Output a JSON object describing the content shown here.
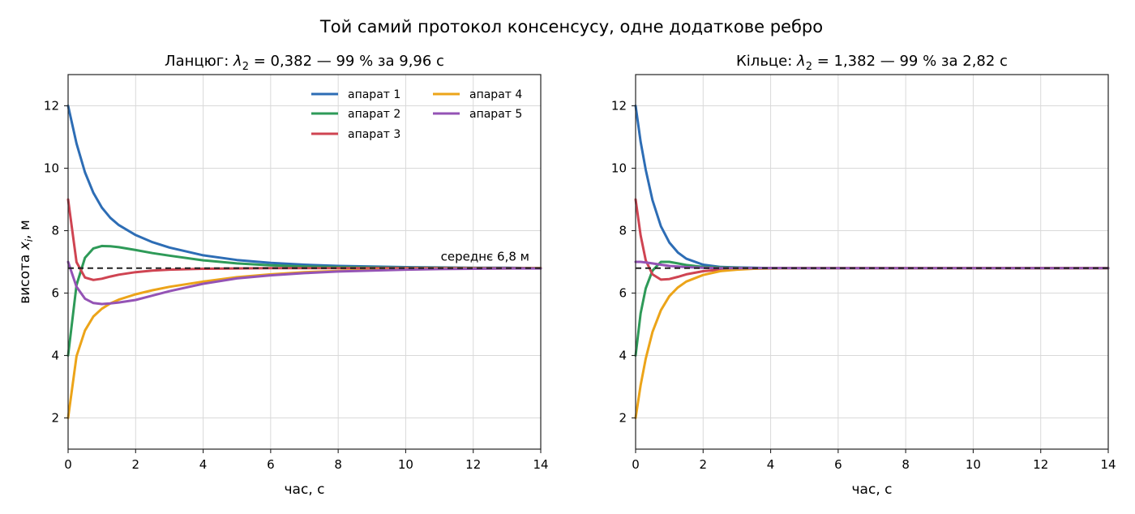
{
  "suptitle": "Той самий протокол консенсусу, одне додаткове ребро",
  "chart_data": [
    {
      "type": "line",
      "title_prefix": "Ланцюг: ",
      "title_symbol": "λ",
      "title_subscript": "2",
      "title_suffix": " = 0,382 — 99 % за 9,96 с",
      "xlabel": "час, с",
      "ylabel_prefix": "висота ",
      "ylabel_symbol": "x",
      "ylabel_subscript": "i",
      "ylabel_suffix": ", м",
      "xlim": [
        0,
        14
      ],
      "ylim": [
        1,
        13
      ],
      "xticks": [
        0,
        2,
        4,
        6,
        8,
        10,
        12,
        14
      ],
      "yticks": [
        2,
        4,
        6,
        8,
        10,
        12
      ],
      "grid": true,
      "legend_position": "top-right",
      "mean": 6.8,
      "mean_label": "середнє 6,8 м",
      "x": [
        0,
        0.25,
        0.5,
        0.75,
        1,
        1.25,
        1.5,
        2,
        2.5,
        3,
        4,
        5,
        6,
        7,
        8,
        9,
        10,
        11,
        12,
        13,
        14
      ],
      "series": [
        {
          "name": "апарат 1",
          "color": "#2d6db5",
          "values": [
            12.0,
            10.79,
            9.87,
            9.21,
            8.74,
            8.41,
            8.18,
            7.86,
            7.63,
            7.46,
            7.21,
            7.06,
            6.97,
            6.91,
            6.87,
            6.85,
            6.83,
            6.82,
            6.81,
            6.81,
            6.8
          ]
        },
        {
          "name": "апарат 2",
          "color": "#2e9a58",
          "values": [
            4.0,
            6.26,
            7.13,
            7.43,
            7.51,
            7.5,
            7.47,
            7.38,
            7.28,
            7.2,
            7.05,
            6.95,
            6.89,
            6.85,
            6.83,
            6.82,
            6.81,
            6.81,
            6.8,
            6.8,
            6.8
          ]
        },
        {
          "name": "апарат 3",
          "color": "#cf4452",
          "values": [
            9.0,
            6.99,
            6.5,
            6.42,
            6.46,
            6.53,
            6.59,
            6.67,
            6.72,
            6.75,
            6.78,
            6.79,
            6.8,
            6.8,
            6.8,
            6.8,
            6.8,
            6.8,
            6.8,
            6.8,
            6.8
          ]
        },
        {
          "name": "апарат 4",
          "color": "#eca419",
          "values": [
            2.0,
            3.98,
            4.8,
            5.25,
            5.5,
            5.67,
            5.79,
            5.96,
            6.09,
            6.2,
            6.37,
            6.51,
            6.6,
            6.67,
            6.71,
            6.74,
            6.76,
            6.78,
            6.79,
            6.79,
            6.8
          ]
        },
        {
          "name": "апарат 5",
          "color": "#9453b5",
          "values": [
            7.0,
            6.2,
            5.82,
            5.68,
            5.65,
            5.67,
            5.7,
            5.78,
            5.92,
            6.06,
            6.3,
            6.47,
            6.57,
            6.64,
            6.69,
            6.72,
            6.75,
            6.77,
            6.78,
            6.79,
            6.79
          ]
        }
      ]
    },
    {
      "type": "line",
      "title_prefix": "Кільце: ",
      "title_symbol": "λ",
      "title_subscript": "2",
      "title_suffix": " = 1,382 — 99 % за 2,82 с",
      "xlabel": "час, с",
      "xlim": [
        0,
        14
      ],
      "ylim": [
        1,
        13
      ],
      "xticks": [
        0,
        2,
        4,
        6,
        8,
        10,
        12,
        14
      ],
      "yticks": [
        2,
        4,
        6,
        8,
        10,
        12
      ],
      "grid": true,
      "mean": 6.8,
      "x": [
        0,
        0.15,
        0.3,
        0.5,
        0.75,
        1,
        1.25,
        1.5,
        2,
        2.5,
        3,
        3.5,
        4,
        5,
        6,
        8,
        10,
        12,
        14
      ],
      "series": [
        {
          "name": "апарат 1",
          "color": "#2d6db5",
          "values": [
            12.0,
            10.85,
            9.95,
            8.98,
            8.14,
            7.62,
            7.3,
            7.1,
            6.91,
            6.84,
            6.82,
            6.81,
            6.8,
            6.8,
            6.8,
            6.8,
            6.8,
            6.8,
            6.8
          ]
        },
        {
          "name": "апарат 2",
          "color": "#2e9a58",
          "values": [
            4.0,
            5.35,
            6.15,
            6.72,
            7.0,
            7.0,
            6.95,
            6.9,
            6.84,
            6.82,
            6.81,
            6.8,
            6.8,
            6.8,
            6.8,
            6.8,
            6.8,
            6.8,
            6.8
          ]
        },
        {
          "name": "апарат 3",
          "color": "#cf4452",
          "values": [
            9.0,
            7.85,
            7.05,
            6.6,
            6.43,
            6.45,
            6.52,
            6.6,
            6.7,
            6.75,
            6.78,
            6.79,
            6.8,
            6.8,
            6.8,
            6.8,
            6.8,
            6.8,
            6.8
          ]
        },
        {
          "name": "апарат 4",
          "color": "#eca419",
          "values": [
            2.0,
            3.05,
            3.9,
            4.75,
            5.45,
            5.9,
            6.18,
            6.37,
            6.58,
            6.7,
            6.75,
            6.78,
            6.79,
            6.8,
            6.8,
            6.8,
            6.8,
            6.8,
            6.8
          ]
        },
        {
          "name": "апарат 5",
          "color": "#9453b5",
          "values": [
            7.0,
            7.0,
            6.98,
            6.95,
            6.91,
            6.87,
            6.85,
            6.83,
            6.81,
            6.8,
            6.8,
            6.8,
            6.8,
            6.8,
            6.8,
            6.8,
            6.8,
            6.8,
            6.8
          ]
        }
      ]
    }
  ]
}
